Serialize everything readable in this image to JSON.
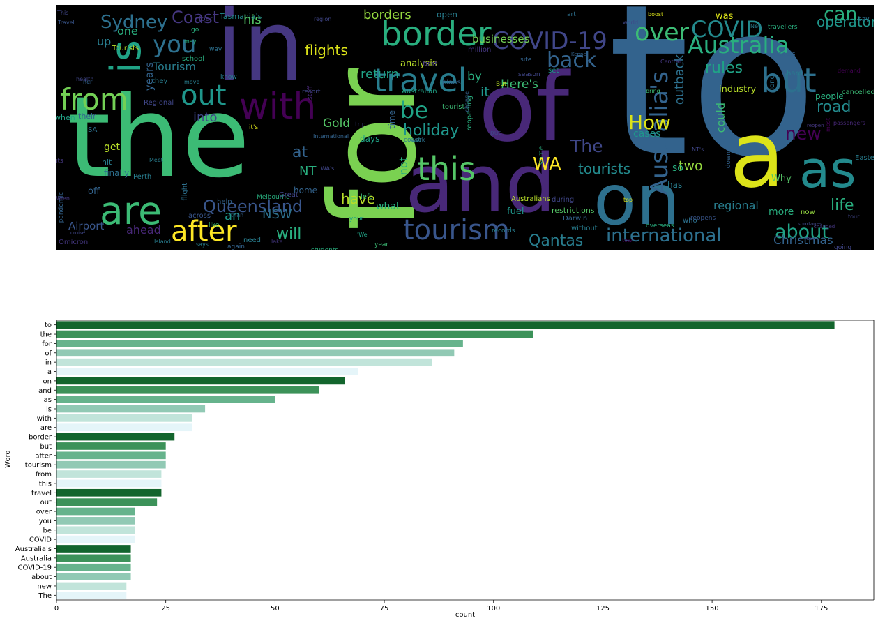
{
  "wordcloud": {
    "words": [
      {
        "text": "to",
        "color": "#33638d"
      },
      {
        "text": "the",
        "color": "#3cbb75"
      },
      {
        "text": "in",
        "color": "#453781"
      },
      {
        "text": "for",
        "color": "#7ad151"
      },
      {
        "text": "of",
        "color": "#482878"
      },
      {
        "text": "and",
        "color": "#482878"
      },
      {
        "text": "on",
        "color": "#2d708e"
      },
      {
        "text": "a",
        "color": "#dce319"
      },
      {
        "text": "as",
        "color": "#238a8d"
      },
      {
        "text": "border",
        "color": "#29af7f"
      },
      {
        "text": "with",
        "color": "#440154"
      },
      {
        "text": "are",
        "color": "#3cbb75"
      },
      {
        "text": "is",
        "color": "#20a386"
      },
      {
        "text": "travel",
        "color": "#287d8e"
      },
      {
        "text": "tourism",
        "color": "#39568c"
      },
      {
        "text": "after",
        "color": "#fde725"
      },
      {
        "text": "from",
        "color": "#73d055"
      },
      {
        "text": "this",
        "color": "#55c667"
      },
      {
        "text": "but",
        "color": "#2d708e"
      },
      {
        "text": "out",
        "color": "#1f968b"
      },
      {
        "text": "over",
        "color": "#3cbb75"
      },
      {
        "text": "you",
        "color": "#2d708e"
      },
      {
        "text": "be",
        "color": "#20a386"
      },
      {
        "text": "Australia",
        "color": "#29af7f"
      },
      {
        "text": "COVID-19",
        "color": "#404688"
      },
      {
        "text": "COVID",
        "color": "#238a8d"
      },
      {
        "text": "Australia's",
        "color": "#33638d"
      },
      {
        "text": "about",
        "color": "#20a386"
      },
      {
        "text": "new",
        "color": "#440154"
      },
      {
        "text": "The",
        "color": "#3f4788"
      },
      {
        "text": "Sydney",
        "color": "#2d708e"
      },
      {
        "text": "Coast",
        "color": "#453781"
      },
      {
        "text": "back",
        "color": "#33638d"
      },
      {
        "text": "international",
        "color": "#2d708e"
      },
      {
        "text": "Qantas",
        "color": "#287d8e"
      },
      {
        "text": "Queensland",
        "color": "#39568c"
      },
      {
        "text": "holiday",
        "color": "#1f968b"
      },
      {
        "text": "How",
        "color": "#dce319"
      },
      {
        "text": "WA",
        "color": "#fde725"
      },
      {
        "text": "tourists",
        "color": "#238a8d"
      },
      {
        "text": "rules",
        "color": "#20a386"
      },
      {
        "text": "can",
        "color": "#29af7f"
      },
      {
        "text": "operators",
        "color": "#1f968b"
      },
      {
        "text": "flights",
        "color": "#dce319"
      },
      {
        "text": "Christmas",
        "color": "#33638d"
      },
      {
        "text": "will",
        "color": "#29af7f"
      },
      {
        "text": "have",
        "color": "#b8de29"
      },
      {
        "text": "road",
        "color": "#238a8d"
      },
      {
        "text": "life",
        "color": "#29af7f"
      },
      {
        "text": "ahead",
        "color": "#482878"
      },
      {
        "text": "Airport",
        "color": "#39568c"
      },
      {
        "text": "Tourism",
        "color": "#287d8e"
      },
      {
        "text": "NSW",
        "color": "#2d708e"
      },
      {
        "text": "an",
        "color": "#1f968b"
      },
      {
        "text": "his",
        "color": "#55c667"
      },
      {
        "text": "one",
        "color": "#29af7f"
      },
      {
        "text": "up",
        "color": "#287d8e"
      },
      {
        "text": "years",
        "color": "#33638d"
      },
      {
        "text": "borders",
        "color": "#95d840"
      },
      {
        "text": "return",
        "color": "#20a386"
      },
      {
        "text": "Here's",
        "color": "#3cbb75"
      },
      {
        "text": "by",
        "color": "#29af7f"
      },
      {
        "text": "it",
        "color": "#1f968b"
      },
      {
        "text": "businesses",
        "color": "#73d055"
      },
      {
        "text": "outback",
        "color": "#2d708e"
      },
      {
        "text": "industry",
        "color": "#b8de29"
      },
      {
        "text": "could",
        "color": "#3cbb75"
      },
      {
        "text": "into",
        "color": "#3f4788"
      },
      {
        "text": "at",
        "color": "#33638d"
      },
      {
        "text": "NT",
        "color": "#29af7f"
      },
      {
        "text": "Gold",
        "color": "#55c667"
      },
      {
        "text": "get",
        "color": "#b8de29"
      },
      {
        "text": "two",
        "color": "#95d840"
      },
      {
        "text": "regional",
        "color": "#287d8e"
      },
      {
        "text": "more",
        "color": "#29af7f"
      },
      {
        "text": "cases",
        "color": "#1f968b"
      },
      {
        "text": "Why",
        "color": "#55c667"
      },
      {
        "text": "not",
        "color": "#29af7f"
      },
      {
        "text": "what",
        "color": "#29af7f"
      },
      {
        "text": "off",
        "color": "#33638d"
      },
      {
        "text": "analysis",
        "color": "#b8de29"
      },
      {
        "text": "was",
        "color": "#dce319"
      },
      {
        "text": "Tasmania's",
        "color": "#238a8d"
      },
      {
        "text": "open",
        "color": "#287d8e"
      },
      {
        "text": "tourist",
        "color": "#3cbb75"
      },
      {
        "text": "reopening",
        "color": "#29af7f"
      },
      {
        "text": "Australian",
        "color": "#20a386"
      },
      {
        "text": "days",
        "color": "#20a386"
      },
      {
        "text": "cancelled",
        "color": "#3cbb75"
      },
      {
        "text": "people",
        "color": "#29af7f"
      },
      {
        "text": "Easter",
        "color": "#287d8e"
      },
      {
        "text": "Perth",
        "color": "#287d8e"
      },
      {
        "text": "finally",
        "color": "#2d708e"
      },
      {
        "text": "hit",
        "color": "#287d8e"
      },
      {
        "text": "home",
        "color": "#33638d"
      },
      {
        "text": "Melbourne",
        "color": "#29af7f"
      },
      {
        "text": "flight",
        "color": "#2d708e"
      },
      {
        "text": "across",
        "color": "#39568c"
      },
      {
        "text": "Great",
        "color": "#404688"
      },
      {
        "text": "Omicron",
        "color": "#453781"
      },
      {
        "text": "pandemic",
        "color": "#33638d"
      },
      {
        "text": "need",
        "color": "#287d8e"
      },
      {
        "text": "students",
        "color": "#29af7f"
      },
      {
        "text": "Island",
        "color": "#287d8e"
      },
      {
        "text": "year",
        "color": "#3cbb75"
      },
      {
        "text": "without",
        "color": "#287d8e"
      },
      {
        "text": "overseas",
        "color": "#29af7f"
      },
      {
        "text": "restrictions",
        "color": "#55c667"
      },
      {
        "text": "fuel",
        "color": "#1f968b"
      },
      {
        "text": "Darwin",
        "color": "#33638d"
      },
      {
        "text": "records",
        "color": "#287d8e"
      },
      {
        "text": "Australians",
        "color": "#b8de29"
      },
      {
        "text": "so",
        "color": "#29af7f"
      },
      {
        "text": "has",
        "color": "#287d8e"
      },
      {
        "text": "who",
        "color": "#2d708e"
      },
      {
        "text": "now",
        "color": "#95d840"
      },
      {
        "text": "reopens",
        "color": "#39568c"
      },
      {
        "text": "say",
        "color": "#2d708e"
      },
      {
        "text": "New",
        "color": "#287d8e"
      },
      {
        "text": "travellers",
        "color": "#29af7f"
      },
      {
        "text": "visitors",
        "color": "#33638d"
      },
      {
        "text": "boost",
        "color": "#dce319"
      },
      {
        "text": "million",
        "color": "#453781"
      },
      {
        "text": "Keppel",
        "color": "#33638d"
      },
      {
        "text": "set",
        "color": "#1f968b"
      },
      {
        "text": "hard",
        "color": "#287d8e"
      },
      {
        "text": "long",
        "color": "#2d708e"
      },
      {
        "text": "bring",
        "color": "#3cbb75"
      },
      {
        "text": "down",
        "color": "#33638d"
      },
      {
        "text": "during",
        "color": "#404688"
      },
      {
        "text": "some",
        "color": "#29af7f"
      },
      {
        "text": "when",
        "color": "#20a386"
      },
      {
        "text": "their",
        "color": "#33638d"
      },
      {
        "text": "school",
        "color": "#29af7f"
      },
      {
        "text": "Tourists",
        "color": "#b8de29"
      },
      {
        "text": "SA",
        "color": "#2d708e"
      },
      {
        "text": "Regional",
        "color": "#404688"
      },
      {
        "text": "staff",
        "color": "#482878"
      },
      {
        "text": "trip",
        "color": "#404688"
      },
      {
        "text": "time",
        "color": "#33638d"
      },
      {
        "text": "left",
        "color": "#3cbb75"
      },
      {
        "text": "first",
        "color": "#453781"
      },
      {
        "text": "plans",
        "color": "#33638d"
      },
      {
        "text": "But",
        "color": "#b8de29"
      },
      {
        "text": "put",
        "color": "#404688"
      },
      {
        "text": "work",
        "color": "#2d708e"
      },
      {
        "text": "change",
        "color": "#33638d"
      },
      {
        "text": "coast",
        "color": "#287d8e"
      },
      {
        "text": "your",
        "color": "#20a386"
      },
      {
        "text": "help",
        "color": "#33638d"
      },
      {
        "text": "like",
        "color": "#3cbb75"
      },
      {
        "text": "than",
        "color": "#33638d"
      },
      {
        "text": "it's",
        "color": "#dce319"
      },
      {
        "text": "its",
        "color": "#453781"
      },
      {
        "text": "know",
        "color": "#287d8e"
      },
      {
        "text": "way",
        "color": "#2d708e"
      },
      {
        "text": "go",
        "color": "#29af7f"
      },
      {
        "text": "may",
        "color": "#29af7f"
      },
      {
        "text": "they",
        "color": "#287d8e"
      },
      {
        "text": "her",
        "color": "#33638d"
      },
      {
        "text": "move",
        "color": "#287d8e"
      },
      {
        "text": "resort",
        "color": "#404688"
      },
      {
        "text": "says",
        "color": "#287d8e"
      },
      {
        "text": "again",
        "color": "#33638d"
      },
      {
        "text": "lake",
        "color": "#453781"
      },
      {
        "text": "cruise",
        "color": "#404688"
      },
      {
        "text": "top",
        "color": "#dce319"
      },
      {
        "text": "town",
        "color": "#440154"
      },
      {
        "text": "our",
        "color": "#404688"
      },
      {
        "text": "tour",
        "color": "#404688"
      },
      {
        "text": "most",
        "color": "#440154"
      },
      {
        "text": "reopen",
        "color": "#453781"
      },
      {
        "text": "region",
        "color": "#404688"
      },
      {
        "text": "season",
        "color": "#404688"
      },
      {
        "text": "site",
        "color": "#33638d"
      },
      {
        "text": "art",
        "color": "#2d708e"
      },
      {
        "text": "world",
        "color": "#3f4788"
      },
      {
        "text": "four",
        "color": "#453781"
      },
      {
        "text": "International",
        "color": "#33638d"
      },
      {
        "text": "Meet",
        "color": "#287d8e"
      },
      {
        "text": "NT's",
        "color": "#404688"
      },
      {
        "text": "WA's",
        "color": "#404688"
      },
      {
        "text": "'We",
        "color": "#20a386"
      },
      {
        "text": "This",
        "color": "#404688"
      },
      {
        "text": "Travel",
        "color": "#39568c"
      },
      {
        "text": "When",
        "color": "#453781"
      },
      {
        "text": "health",
        "color": "#404688"
      },
      {
        "text": "Central",
        "color": "#453781"
      },
      {
        "text": "demand",
        "color": "#440154"
      },
      {
        "text": "going",
        "color": "#404688"
      },
      {
        "text": "changed",
        "color": "#453781"
      },
      {
        "text": "shortages",
        "color": "#3f4788"
      },
      {
        "text": "passengers",
        "color": "#482878"
      },
      {
        "text": "community",
        "color": "#404688"
      },
      {
        "text": "island",
        "color": "#453781"
      },
      {
        "text": "Tasmanian",
        "color": "#3f4788"
      },
      {
        "text": "adventure",
        "color": "#482878"
      }
    ]
  },
  "chart_data": {
    "type": "bar",
    "orientation": "horizontal",
    "xlabel": "count",
    "ylabel": "Word",
    "xlim": [
      0,
      187
    ],
    "xticks": [
      0,
      25,
      50,
      75,
      100,
      125,
      150,
      175
    ],
    "grid": false,
    "legend": "none",
    "palette": [
      "#13652d",
      "#3c9259",
      "#66b38c",
      "#91c9b4",
      "#c1e4da",
      "#e5f5f9"
    ],
    "categories": [
      "to",
      "the",
      "for",
      "of",
      "in",
      "a",
      "on",
      "and",
      "as",
      "is",
      "with",
      "are",
      "border",
      "but",
      "after",
      "tourism",
      "from",
      "this",
      "travel",
      "out",
      "over",
      "you",
      "be",
      "COVID",
      "Australia's",
      "Australia",
      "COVID-19",
      "about",
      "new",
      "The"
    ],
    "values": [
      178,
      109,
      93,
      91,
      86,
      69,
      66,
      60,
      50,
      34,
      31,
      31,
      27,
      25,
      25,
      25,
      24,
      24,
      24,
      23,
      18,
      18,
      18,
      18,
      17,
      17,
      17,
      17,
      16,
      16
    ]
  }
}
